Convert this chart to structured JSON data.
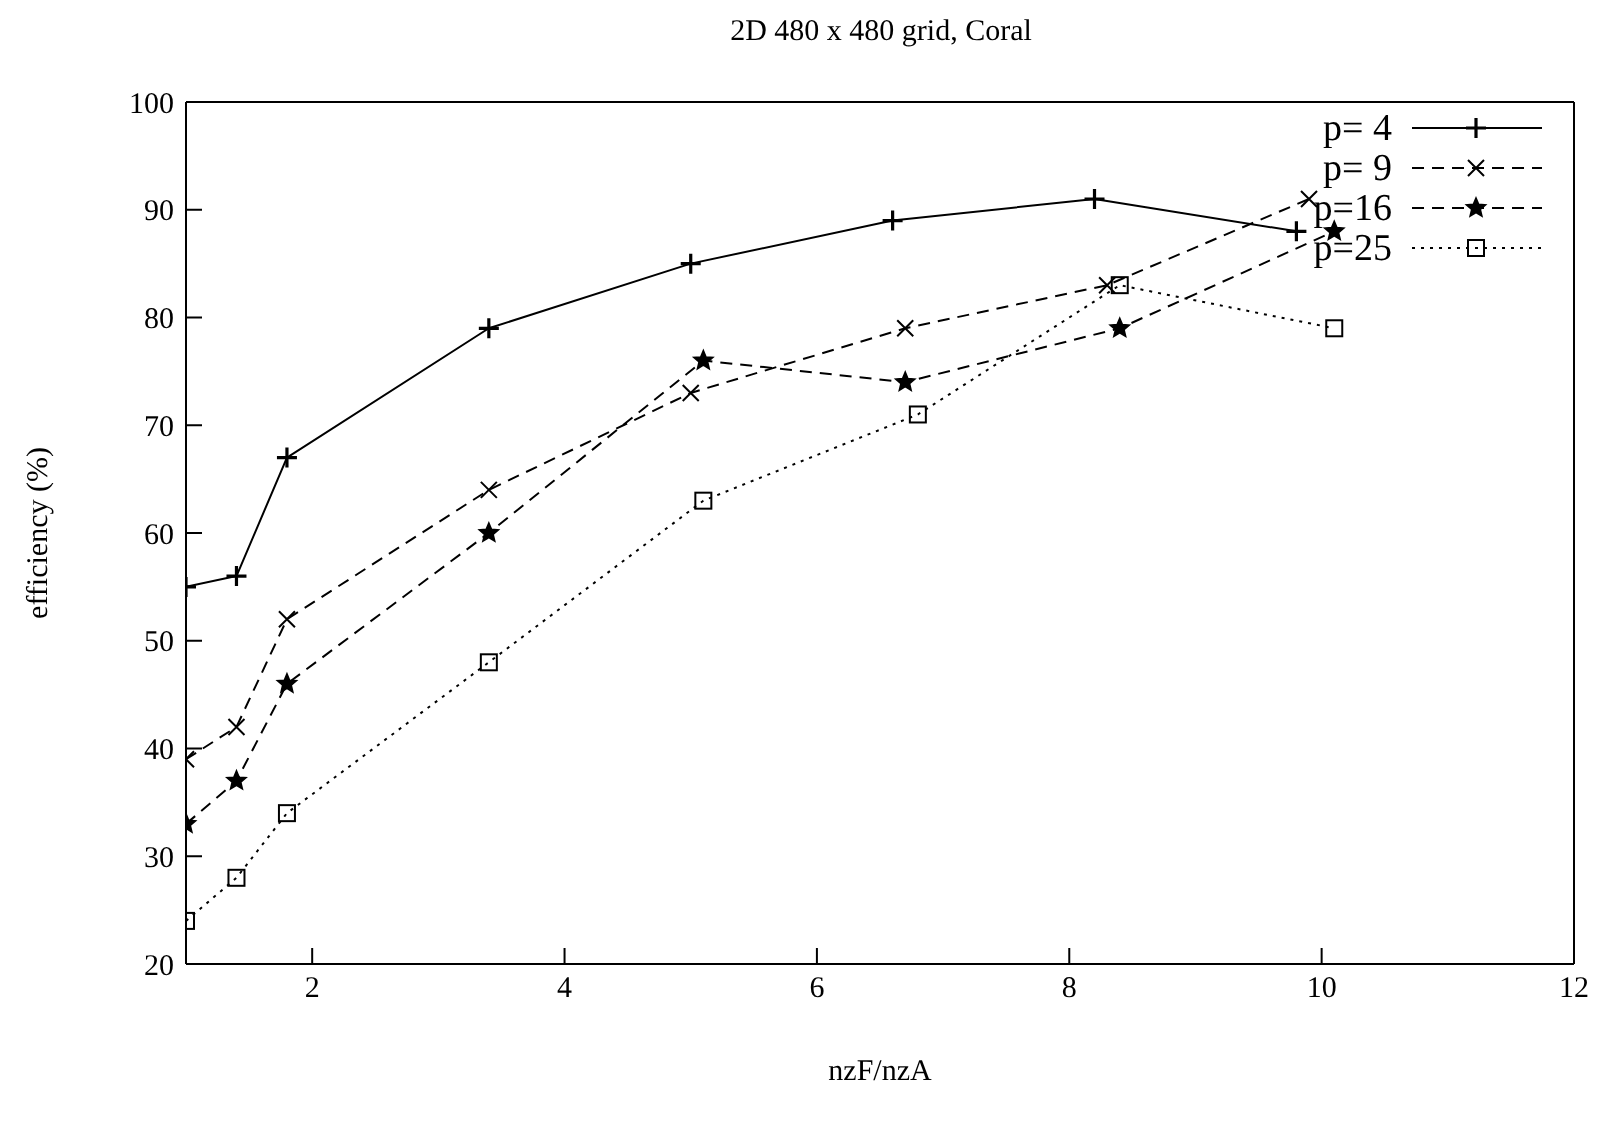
{
  "chart_data": {
    "type": "line",
    "title": "2D 480 x 480 grid, Coral",
    "xlabel": "nzF/nzA",
    "ylabel": "efficiency (%)",
    "xlim": [
      1,
      12
    ],
    "xticks": [
      2,
      4,
      6,
      8,
      10,
      12
    ],
    "ylim": [
      20,
      100
    ],
    "yticks": [
      20,
      30,
      40,
      50,
      60,
      70,
      80,
      90,
      100
    ],
    "legend": "top right",
    "grid": false,
    "series": [
      {
        "name": "p= 4",
        "color": "#000000",
        "marker": "plus",
        "line_style": "solid",
        "x": [
          1,
          1.4,
          1.8,
          3.4,
          5.0,
          6.6,
          8.2,
          9.8
        ],
        "values": [
          55,
          56,
          67,
          79,
          85,
          89,
          91,
          88
        ]
      },
      {
        "name": "p= 9",
        "color": "#000000",
        "marker": "cross",
        "line_style": "dashed",
        "x": [
          1,
          1.4,
          1.8,
          3.4,
          5.0,
          6.7,
          8.3,
          9.9
        ],
        "values": [
          39,
          42,
          52,
          64,
          73,
          79,
          83,
          91
        ]
      },
      {
        "name": "p=16",
        "color": "#000000",
        "marker": "star",
        "line_style": "dashed",
        "x": [
          1,
          1.4,
          1.8,
          3.4,
          5.1,
          6.7,
          8.4,
          10.1
        ],
        "values": [
          33,
          37,
          46,
          60,
          76,
          74,
          79,
          88
        ]
      },
      {
        "name": "p=25",
        "color": "#000000",
        "marker": "square",
        "line_style": "dotted",
        "x": [
          1,
          1.4,
          1.8,
          3.4,
          5.1,
          6.8,
          8.4,
          10.1
        ],
        "values": [
          24,
          28,
          34,
          48,
          63,
          71,
          83,
          79
        ]
      }
    ]
  }
}
